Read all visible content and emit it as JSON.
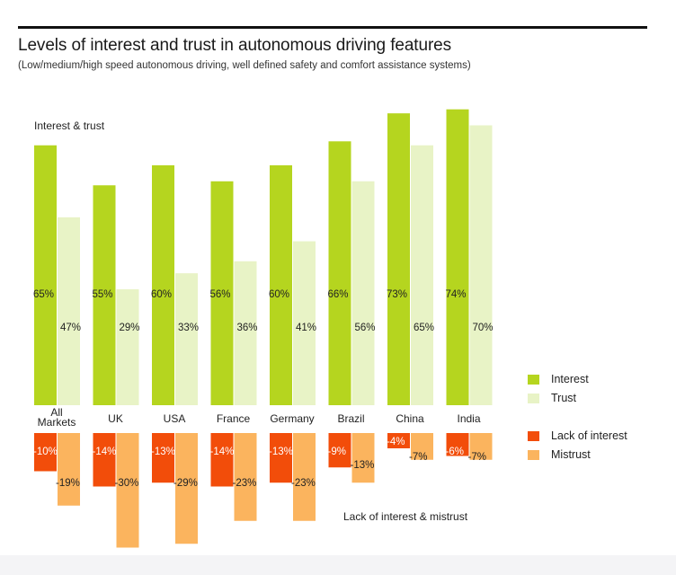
{
  "title": "Levels of interest and trust in autonomous driving features",
  "subtitle": "(Low/medium/high speed autonomous driving, well defined safety and comfort assistance systems)",
  "colors": {
    "interest": "#b5d51f",
    "trust": "#e8f3c6",
    "lack_of_interest": "#f24d0a",
    "mistrust": "#fbb45e"
  },
  "chart_data": {
    "type": "bar",
    "title": "Levels of interest and trust in autonomous driving features",
    "subtitle": "(Low/medium/high speed autonomous driving, well defined safety and comfort assistance systems)",
    "upper_panel_label": "Interest & trust",
    "lower_panel_label": "Lack of interest & mistrust",
    "categories": [
      "All\nMarkets",
      "UK",
      "USA",
      "France",
      "Germany",
      "Brazil",
      "China",
      "India"
    ],
    "series": [
      {
        "name": "Interest",
        "values": [
          65,
          55,
          60,
          56,
          60,
          66,
          73,
          74
        ],
        "labels": [
          "65%",
          "55%",
          "60%",
          "56%",
          "60%",
          "66%",
          "73%",
          "74%"
        ]
      },
      {
        "name": "Trust",
        "values": [
          47,
          29,
          33,
          36,
          41,
          56,
          65,
          70
        ],
        "labels": [
          "47%",
          "29%",
          "33%",
          "36%",
          "41%",
          "56%",
          "65%",
          "70%"
        ]
      },
      {
        "name": "Lack of interest",
        "values": [
          -10,
          -14,
          -13,
          -14,
          -13,
          -9,
          -4,
          -6
        ],
        "labels": [
          "-10%",
          "-14%",
          "-13%",
          "-14%",
          "-13%",
          "-9%",
          "-4%",
          "-6%"
        ]
      },
      {
        "name": "Mistrust",
        "values": [
          -19,
          -30,
          -29,
          -23,
          -23,
          -13,
          -7,
          -7
        ],
        "labels": [
          "-19%",
          "-30%",
          "-29%",
          "-23%",
          "-23%",
          "-13%",
          "-7%",
          "-7%"
        ]
      }
    ],
    "ylim": [
      -30,
      74
    ],
    "legend": [
      "Interest",
      "Trust",
      "Lack of interest",
      "Mistrust"
    ],
    "legend_position": "right"
  }
}
